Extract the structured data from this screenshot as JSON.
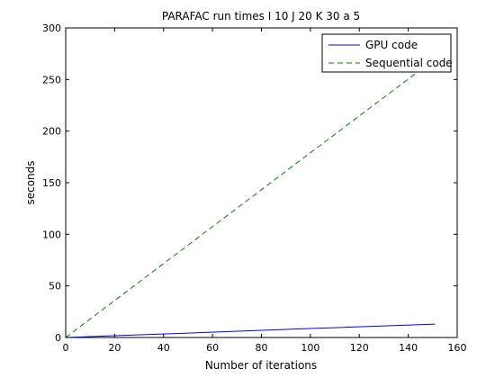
{
  "chart_data": {
    "type": "line",
    "title": "PARAFAC run times I 10 J 20 K 30 a 5",
    "xlabel": "Number of iterations",
    "ylabel": "seconds",
    "xlim": [
      0,
      160
    ],
    "ylim": [
      0,
      300
    ],
    "xticks": [
      0,
      20,
      40,
      60,
      80,
      100,
      120,
      140,
      160
    ],
    "yticks": [
      0,
      50,
      100,
      150,
      200,
      250,
      300
    ],
    "grid": false,
    "legend_position": "top-right",
    "series": [
      {
        "name": "GPU code",
        "color": "#0000ff",
        "line_style": "solid",
        "x": [
          0,
          50,
          100,
          151
        ],
        "y": [
          0,
          4.3,
          8.7,
          13
        ]
      },
      {
        "name": "Sequential code",
        "color": "#008000",
        "line_style": "dashed",
        "x": [
          0,
          50,
          100,
          151
        ],
        "y": [
          0,
          89.5,
          179,
          270
        ]
      }
    ]
  }
}
